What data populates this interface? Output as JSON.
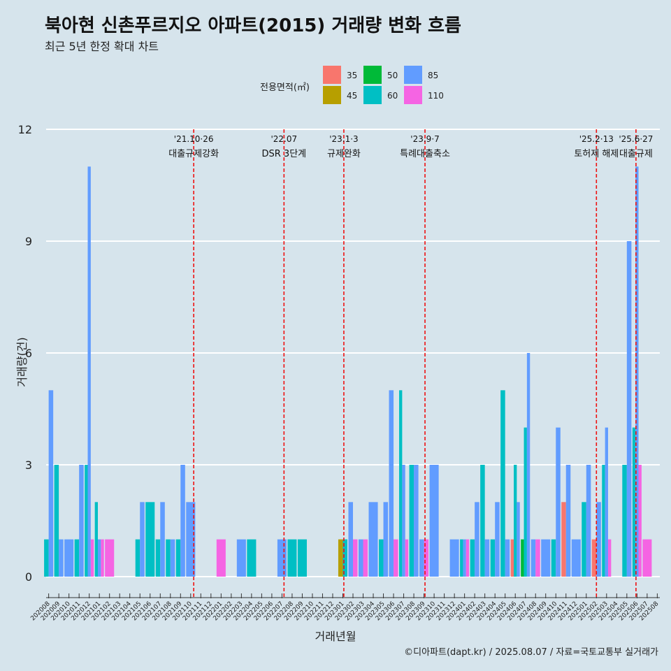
{
  "title": "북아현 신촌푸르지오 아파트(2015) 거래량 변화 흐름",
  "subtitle": "최근 5년 한정 확대 차트",
  "caption": "©디아파트(dapt.kr) / 2025.08.07 / 자료=국토교통부 실거래가",
  "colors": {
    "background": "#d6e4ec",
    "grid": "#ffffff",
    "event_line": "#ee1111"
  },
  "legend": {
    "title": "전용면적(㎡)",
    "items": [
      {
        "label": "35",
        "color": "#f8766d"
      },
      {
        "label": "45",
        "color": "#b79f00"
      },
      {
        "label": "50",
        "color": "#00ba38"
      },
      {
        "label": "60",
        "color": "#00bfc4"
      },
      {
        "label": "85",
        "color": "#619cff"
      },
      {
        "label": "110",
        "color": "#f564e3"
      }
    ]
  },
  "chart_data": {
    "type": "bar",
    "stacking": "dodge",
    "title": "북아현 신촌푸르지오 아파트(2015) 거래량 변화 흐름",
    "xlabel": "거래년월",
    "ylabel": "거래량(건)",
    "ylim": [
      0,
      12
    ],
    "yticks": [
      0,
      3,
      6,
      9,
      12
    ],
    "categories": [
      "202008",
      "202009",
      "202010",
      "202011",
      "202012",
      "202101",
      "202102",
      "202103",
      "202104",
      "202105",
      "202106",
      "202107",
      "202108",
      "202109",
      "202110",
      "202111",
      "202112",
      "202201",
      "202202",
      "202203",
      "202204",
      "202205",
      "202206",
      "202207",
      "202208",
      "202209",
      "202210",
      "202211",
      "202212",
      "202301",
      "202302",
      "202303",
      "202304",
      "202305",
      "202306",
      "202307",
      "202308",
      "202309",
      "202310",
      "202311",
      "202312",
      "202401",
      "202402",
      "202403",
      "202404",
      "202405",
      "202406",
      "202407",
      "202408",
      "202409",
      "202410",
      "202411",
      "202412",
      "202501",
      "202502",
      "202503",
      "202504",
      "202505",
      "202506",
      "202507",
      "202508"
    ],
    "series_names": [
      "35",
      "45",
      "50",
      "60",
      "85",
      "110"
    ],
    "bars": [
      {
        "month": "202008",
        "values": {
          "60": 1,
          "85": 5
        }
      },
      {
        "month": "202009",
        "values": {
          "60": 3,
          "85": 1
        }
      },
      {
        "month": "202010",
        "values": {
          "85": 1
        }
      },
      {
        "month": "202011",
        "values": {
          "60": 1,
          "85": 3
        }
      },
      {
        "month": "202012",
        "values": {
          "60": 3,
          "85": 11,
          "110": 1
        }
      },
      {
        "month": "202101",
        "values": {
          "60": 2,
          "85": 1,
          "110": 1
        }
      },
      {
        "month": "202102",
        "values": {
          "110": 1
        }
      },
      {
        "month": "202105",
        "values": {
          "60": 1,
          "85": 2
        }
      },
      {
        "month": "202106",
        "values": {
          "60": 2
        }
      },
      {
        "month": "202107",
        "values": {
          "60": 1,
          "85": 2
        }
      },
      {
        "month": "202108",
        "values": {
          "60": 1,
          "85": 1
        }
      },
      {
        "month": "202109",
        "values": {
          "60": 1,
          "85": 3
        }
      },
      {
        "month": "202110",
        "values": {
          "85": 2
        }
      },
      {
        "month": "202201",
        "values": {
          "110": 1
        }
      },
      {
        "month": "202203",
        "values": {
          "85": 1
        }
      },
      {
        "month": "202204",
        "values": {
          "60": 1
        }
      },
      {
        "month": "202207",
        "values": {
          "85": 1
        }
      },
      {
        "month": "202208",
        "values": {
          "60": 1
        }
      },
      {
        "month": "202209",
        "values": {
          "60": 1
        }
      },
      {
        "month": "202301",
        "values": {
          "45": 1,
          "60": 1
        }
      },
      {
        "month": "202302",
        "values": {
          "85": 2,
          "110": 1
        }
      },
      {
        "month": "202303",
        "values": {
          "85": 1,
          "110": 1
        }
      },
      {
        "month": "202304",
        "values": {
          "85": 2
        }
      },
      {
        "month": "202305",
        "values": {
          "60": 1,
          "85": 2
        }
      },
      {
        "month": "202306",
        "values": {
          "85": 5,
          "110": 1
        }
      },
      {
        "month": "202307",
        "values": {
          "60": 5,
          "85": 3,
          "110": 1
        }
      },
      {
        "month": "202308",
        "values": {
          "60": 3,
          "85": 3
        }
      },
      {
        "month": "202309",
        "values": {
          "85": 1,
          "110": 1
        }
      },
      {
        "month": "202310",
        "values": {
          "85": 3
        }
      },
      {
        "month": "202312",
        "values": {
          "85": 1
        }
      },
      {
        "month": "202401",
        "values": {
          "60": 1,
          "85": 1,
          "110": 1
        }
      },
      {
        "month": "202402",
        "values": {
          "60": 1,
          "85": 2
        }
      },
      {
        "month": "202403",
        "values": {
          "60": 3,
          "85": 1
        }
      },
      {
        "month": "202404",
        "values": {
          "60": 1,
          "85": 2
        }
      },
      {
        "month": "202405",
        "values": {
          "60": 5,
          "85": 1
        }
      },
      {
        "month": "202406",
        "values": {
          "35": 1,
          "60": 3,
          "85": 2
        }
      },
      {
        "month": "202407",
        "values": {
          "50": 1,
          "60": 4,
          "85": 6
        }
      },
      {
        "month": "202408",
        "values": {
          "85": 1,
          "110": 1
        }
      },
      {
        "month": "202409",
        "values": {
          "85": 1
        }
      },
      {
        "month": "202410",
        "values": {
          "60": 1,
          "85": 4
        }
      },
      {
        "month": "202411",
        "values": {
          "35": 2,
          "85": 3
        }
      },
      {
        "month": "202412",
        "values": {
          "85": 1
        }
      },
      {
        "month": "202501",
        "values": {
          "60": 2,
          "85": 3
        }
      },
      {
        "month": "202502",
        "values": {
          "35": 1,
          "85": 2
        }
      },
      {
        "month": "202503",
        "values": {
          "60": 3,
          "85": 4,
          "110": 1
        }
      },
      {
        "month": "202505",
        "values": {
          "60": 3,
          "85": 9
        }
      },
      {
        "month": "202506",
        "values": {
          "60": 4,
          "85": 11,
          "110": 3
        }
      },
      {
        "month": "202507",
        "values": {
          "110": 1
        }
      }
    ],
    "events": [
      {
        "x": 14.3,
        "date": "'21.10·26",
        "label": "대출규제강화"
      },
      {
        "x": 23.2,
        "date": "'22.07",
        "label": "DSR 3단계"
      },
      {
        "x": 29.1,
        "date": "'23.1·3",
        "label": "규제완화"
      },
      {
        "x": 37.1,
        "date": "'23.9·7",
        "label": "특례대출축소"
      },
      {
        "x": 54.0,
        "date": "'25.2·13",
        "label": "토허제 해제"
      },
      {
        "x": 57.9,
        "date": "'25.6·27",
        "label": "대출규제"
      }
    ]
  }
}
